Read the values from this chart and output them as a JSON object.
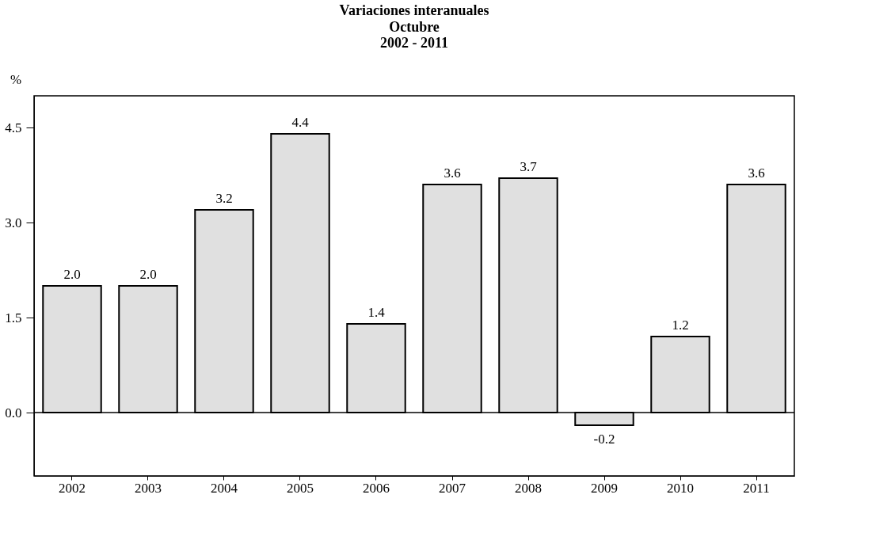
{
  "chart_data": {
    "type": "bar",
    "title": "Variaciones interanuales",
    "subtitle": [
      "Octubre",
      "2002 - 2011"
    ],
    "ylabel": "%",
    "categories": [
      "2002",
      "2003",
      "2004",
      "2005",
      "2006",
      "2007",
      "2008",
      "2009",
      "2010",
      "2011"
    ],
    "values": [
      2.0,
      2.0,
      3.2,
      4.4,
      1.4,
      3.6,
      3.7,
      -0.2,
      1.2,
      3.6
    ],
    "color": "#e0e0e0",
    "ylim": [
      -1.0,
      5.0
    ],
    "yticks": [
      {
        "value": 0,
        "label": "0.0"
      },
      {
        "value": 1.5,
        "label": "1.5"
      },
      {
        "value": 3,
        "label": "3.0"
      },
      {
        "value": 4.5,
        "label": "4.5"
      }
    ],
    "value_labels": [
      "2.0",
      "2.0",
      "3.2",
      "4.4",
      "1.4",
      "3.6",
      "3.7",
      "-0.2",
      "1.2",
      "3.6"
    ],
    "ref_lines": [
      {
        "axis": "y",
        "value": 0
      }
    ]
  }
}
